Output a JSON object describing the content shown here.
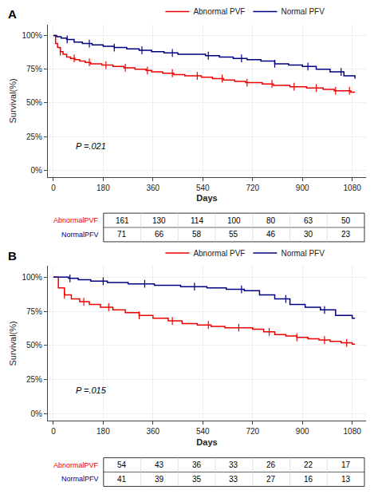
{
  "chart_data": [
    {
      "type": "line",
      "title": "A",
      "line_style": "step",
      "legend": "top",
      "grid": true,
      "x_label": "Days",
      "y_label": "Survival(%)",
      "xlim": [
        -20,
        1130
      ],
      "ylim": [
        -5,
        108
      ],
      "xticks": [
        0,
        180,
        360,
        540,
        720,
        900,
        1080
      ],
      "yticks": [
        {
          "value": 0,
          "label": "0%"
        },
        {
          "value": 25,
          "label": "25%"
        },
        {
          "value": 50,
          "label": "50%"
        },
        {
          "value": 75,
          "label": "75%"
        },
        {
          "value": 100,
          "label": "100%"
        }
      ],
      "annotations": [
        {
          "text": "P =.021",
          "x": 75,
          "y": 13
        }
      ],
      "series": [
        {
          "name": "Abnormal PVF",
          "color": "#EE0000",
          "marker": "line-ns-open",
          "x": [
            0,
            8,
            15,
            25,
            35,
            48,
            62,
            78,
            95,
            115,
            135,
            155,
            175,
            195,
            215,
            235,
            255,
            275,
            295,
            315,
            335,
            355,
            375,
            395,
            415,
            435,
            455,
            475,
            495,
            515,
            535,
            555,
            575,
            595,
            615,
            635,
            655,
            675,
            695,
            715,
            735,
            755,
            775,
            795,
            815,
            835,
            855,
            875,
            895,
            915,
            935,
            955,
            975,
            995,
            1015,
            1035,
            1055,
            1075,
            1090
          ],
          "values": [
            100,
            94,
            91,
            88,
            86,
            84,
            83,
            82,
            81,
            80,
            79,
            79,
            78,
            78,
            77,
            77,
            76,
            76,
            75,
            75,
            74,
            73,
            73,
            72,
            72,
            71,
            71,
            70,
            70,
            70,
            69,
            69,
            68,
            68,
            67,
            67,
            66,
            66,
            65,
            65,
            65,
            64,
            64,
            63,
            63,
            63,
            62,
            62,
            62,
            61,
            61,
            61,
            60,
            60,
            59,
            59,
            59,
            58,
            58
          ],
          "censor_x": [
            25,
            75,
            130,
            190,
            260,
            340,
            430,
            520,
            610,
            700,
            790,
            870,
            950,
            1020,
            1070
          ],
          "censor_y": [
            88,
            83,
            80,
            78,
            76,
            74,
            72,
            70,
            68,
            65,
            64,
            62,
            61,
            59,
            59
          ]
        },
        {
          "name": "Normal PFV",
          "color": "#000080",
          "marker": "line-ns-open",
          "x": [
            0,
            12,
            28,
            48,
            75,
            105,
            140,
            180,
            220,
            265,
            310,
            355,
            400,
            450,
            500,
            550,
            600,
            650,
            700,
            750,
            800,
            850,
            900,
            950,
            1000,
            1050,
            1090
          ],
          "values": [
            100,
            99,
            98,
            97,
            95,
            94,
            93,
            92,
            91,
            90,
            89,
            88,
            87,
            86,
            86,
            85,
            84,
            83,
            82,
            81,
            79,
            78,
            77,
            75,
            73,
            70,
            68
          ],
          "censor_x": [
            50,
            130,
            220,
            320,
            430,
            560,
            680,
            800,
            920,
            1040
          ],
          "censor_y": [
            97,
            94,
            91,
            89,
            87,
            85,
            83,
            79,
            77,
            73
          ]
        }
      ],
      "table": {
        "rows": [
          {
            "name": "AbnormalPVF",
            "color": "#EE0000",
            "values": [
              161,
              130,
              114,
              100,
              80,
              63,
              50
            ]
          },
          {
            "name": "NormalPFV",
            "color": "#000080",
            "values": [
              71,
              66,
              58,
              55,
              46,
              30,
              23
            ]
          }
        ]
      }
    },
    {
      "type": "line",
      "title": "B",
      "line_style": "step",
      "legend": "top",
      "grid": true,
      "x_label": "Days",
      "y_label": "Survival(%)",
      "xlim": [
        -20,
        1130
      ],
      "ylim": [
        -5,
        108
      ],
      "xticks": [
        0,
        180,
        360,
        540,
        720,
        900,
        1080
      ],
      "yticks": [
        {
          "value": 0,
          "label": "0%"
        },
        {
          "value": 25,
          "label": "25%"
        },
        {
          "value": 50,
          "label": "50%"
        },
        {
          "value": 75,
          "label": "75%"
        },
        {
          "value": 100,
          "label": "100%"
        }
      ],
      "annotations": [
        {
          "text": "P =.015",
          "x": 75,
          "y": 13
        }
      ],
      "series": [
        {
          "name": "Abnormal PVF",
          "color": "#EE0000",
          "marker": "line-ns-open",
          "x": [
            0,
            18,
            40,
            65,
            95,
            130,
            170,
            215,
            260,
            310,
            360,
            415,
            465,
            520,
            570,
            620,
            670,
            720,
            760,
            800,
            840,
            880,
            920,
            960,
            1000,
            1040,
            1080,
            1090
          ],
          "values": [
            100,
            92,
            87,
            84,
            82,
            80,
            78,
            76,
            74,
            72,
            70,
            68,
            66,
            65,
            64,
            63,
            63,
            62,
            60,
            58,
            57,
            56,
            55,
            54,
            53,
            52,
            51,
            51
          ],
          "censor_x": [
            40,
            110,
            200,
            310,
            430,
            560,
            670,
            780,
            880,
            980,
            1060
          ],
          "censor_y": [
            87,
            82,
            78,
            72,
            68,
            65,
            63,
            60,
            56,
            54,
            52
          ]
        },
        {
          "name": "Normal PFV",
          "color": "#000080",
          "marker": "line-ns-open",
          "x": [
            0,
            25,
            55,
            90,
            135,
            195,
            270,
            365,
            460,
            555,
            625,
            690,
            745,
            800,
            855,
            910,
            965,
            1020,
            1080,
            1090
          ],
          "values": [
            100,
            100,
            99,
            98,
            97,
            96,
            95,
            94,
            93,
            92,
            91,
            90,
            87,
            84,
            80,
            78,
            76,
            72,
            70,
            70
          ],
          "censor_x": [
            60,
            180,
            330,
            510,
            680,
            840,
            980
          ],
          "censor_y": [
            99,
            97,
            95,
            93,
            91,
            84,
            76
          ]
        }
      ],
      "table": {
        "rows": [
          {
            "name": "AbnormalPVF",
            "color": "#EE0000",
            "values": [
              54,
              43,
              36,
              33,
              26,
              22,
              17
            ]
          },
          {
            "name": "NormalPFV",
            "color": "#000080",
            "values": [
              41,
              39,
              35,
              33,
              27,
              16,
              13
            ]
          }
        ]
      }
    }
  ]
}
